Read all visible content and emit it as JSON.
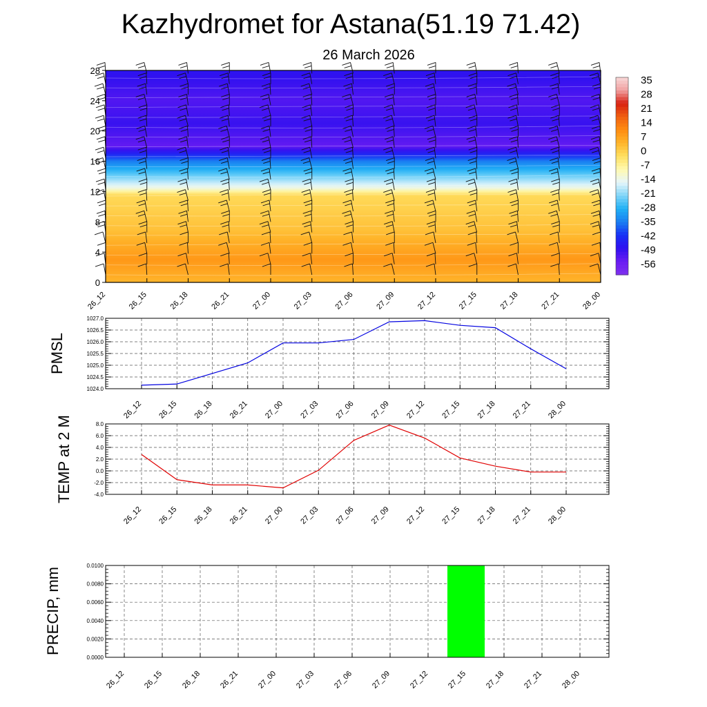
{
  "title": "Kazhydromet for Astana(51.19 71.42)",
  "subtitle": "26 March 2026",
  "time_labels": [
    "26_12",
    "26_15",
    "26_18",
    "26_21",
    "27_00",
    "27_03",
    "27_06",
    "27_09",
    "27_12",
    "27_15",
    "27_18",
    "27_21",
    "28_00"
  ],
  "chart_data": [
    {
      "type": "heatmap",
      "name": "vertical-cross-section",
      "y_ticks": [
        0,
        4,
        8,
        12,
        16,
        20,
        24,
        28
      ],
      "ylim": [
        0,
        28
      ],
      "colorbar": {
        "labels": [
          "35",
          "28",
          "21",
          "14",
          "7",
          "0",
          "-7",
          "-14",
          "-21",
          "-28",
          "-35",
          "-42",
          "-49",
          "-56"
        ],
        "range": [
          -63,
          42
        ]
      },
      "temperature_profile_by_level": [
        {
          "level": 0,
          "value": 7
        },
        {
          "level": 3,
          "value": 12
        },
        {
          "level": 7,
          "value": 5
        },
        {
          "level": 11.5,
          "value": 1
        },
        {
          "level": 12.5,
          "value": -12
        },
        {
          "level": 14,
          "value": -22
        },
        {
          "level": 16,
          "value": -35
        },
        {
          "level": 18,
          "value": -55
        },
        {
          "level": 21,
          "value": -50
        },
        {
          "level": 24,
          "value": -53
        },
        {
          "level": 28,
          "value": -48
        }
      ],
      "wind_barbs": "present"
    },
    {
      "type": "line",
      "name": "pmsl",
      "ylabel": "PMSL",
      "ylim": [
        1024.0,
        1027.0
      ],
      "y_ticks": [
        "1024.0",
        "1024.5",
        "1025.0",
        "1025.5",
        "1026.0",
        "1026.5",
        "1027.0"
      ],
      "series": [
        {
          "color": "#0000e0",
          "values": [
            1024.15,
            1024.2,
            1024.65,
            1025.1,
            1025.95,
            1025.95,
            1026.1,
            1026.85,
            1026.9,
            1026.7,
            1026.6,
            1025.7,
            1024.85
          ]
        }
      ]
    },
    {
      "type": "line",
      "name": "temp-2m",
      "ylabel": "TEMP at 2 M",
      "ylim": [
        -4.0,
        8.0
      ],
      "y_ticks": [
        "-4.0",
        "-2.0",
        "0.0",
        "2.0",
        "4.0",
        "6.0",
        "8.0"
      ],
      "series": [
        {
          "color": "#e00000",
          "values": [
            2.8,
            -1.5,
            -2.4,
            -2.4,
            -2.9,
            0.1,
            5.2,
            7.8,
            5.6,
            2.2,
            0.8,
            -0.2,
            -0.2
          ]
        }
      ]
    },
    {
      "type": "bar",
      "name": "precip",
      "ylabel": "PRECIP, mm",
      "ylim": [
        0,
        0.01
      ],
      "y_ticks": [
        "0.0000",
        "0.0020",
        "0.0040",
        "0.0060",
        "0.0080",
        "0.0100"
      ],
      "bar_color": "#00ff00",
      "values": [
        0,
        0,
        0,
        0,
        0,
        0,
        0,
        0,
        0,
        0.01,
        0,
        0,
        0
      ]
    }
  ]
}
